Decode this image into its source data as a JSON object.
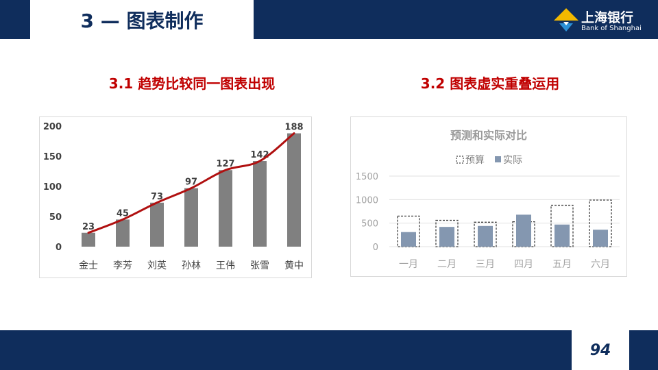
{
  "header": {
    "title": "3 — 图表制作",
    "logo_cn": "上海银行",
    "logo_en": "Bank of Shanghai"
  },
  "sections": {
    "left_title": "3.1 趋势比较同一图表出现",
    "right_title": "3.2 图表虚实重叠运用"
  },
  "footer": {
    "page_number": "94"
  },
  "colors": {
    "navy": "#0f2d5c",
    "accent_red": "#c00000",
    "bar_gray": "#808080",
    "trend_line": "#b01010",
    "actual_blue": "#8497b0",
    "logo_yellow": "#f2b800",
    "logo_blue": "#2a8fd6"
  },
  "chart_data": [
    {
      "type": "bar",
      "title": "",
      "categories": [
        "金士",
        "李芳",
        "刘英",
        "孙林",
        "王伟",
        "张雪",
        "黄中"
      ],
      "values": [
        23,
        45,
        73,
        97,
        127,
        142,
        188
      ],
      "yticks": [
        "0",
        "50",
        "100",
        "150",
        "200"
      ],
      "ylim": [
        0,
        200
      ],
      "overlay": "smoothed trend line through bar values",
      "data_labels": true,
      "grid": false
    },
    {
      "type": "bar",
      "title": "预测和实际对比",
      "categories": [
        "一月",
        "二月",
        "三月",
        "四月",
        "五月",
        "六月"
      ],
      "series": [
        {
          "name": "预算",
          "values": [
            650,
            560,
            520,
            530,
            880,
            990
          ],
          "style": "dashed outline"
        },
        {
          "name": "实际",
          "values": [
            310,
            420,
            440,
            680,
            470,
            360
          ],
          "style": "filled"
        }
      ],
      "yticks": [
        "0",
        "500",
        "1000",
        "1500"
      ],
      "ylim": [
        0,
        1500
      ],
      "legend": "top-center",
      "grid": true
    }
  ]
}
